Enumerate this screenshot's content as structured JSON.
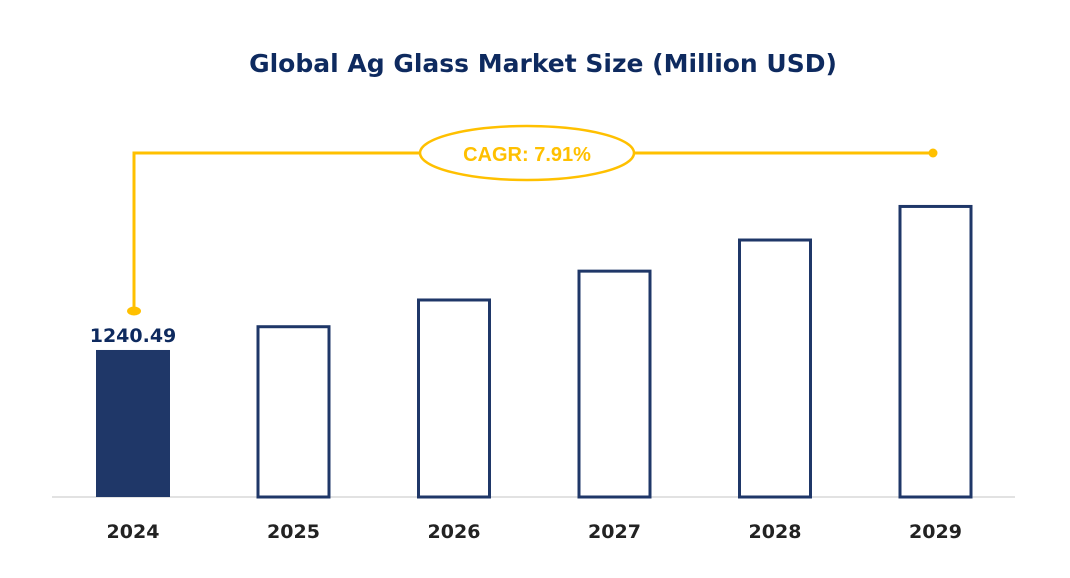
{
  "chart_data": {
    "type": "bar",
    "title": "Global Ag Glass Market Size (Million USD)",
    "categories": [
      "2024",
      "2025",
      "2026",
      "2027",
      "2028",
      "2029"
    ],
    "values": [
      1240.49,
      1338.6,
      1444.5,
      1558.8,
      1682.1,
      1815.1
    ],
    "data_labels": [
      "1240.49"
    ],
    "ylim": [
      658,
      1900
    ],
    "grid": false,
    "annotation": "CAGR: 7.91%",
    "colors": {
      "bar_fill_first": "#1f3768",
      "bar_outline": "#1f3768",
      "accent": "#ffc000",
      "title": "#0e2a5f",
      "baseline": "#d9d9d9"
    }
  }
}
